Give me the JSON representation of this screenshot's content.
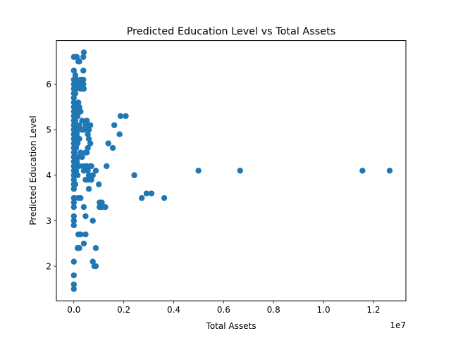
{
  "chart_data": {
    "type": "scatter",
    "title": "Predicted Education Level vs Total Assets",
    "xlabel": "Total Assets",
    "ylabel": "Predicted Education Level",
    "x_offset_label": "1e7",
    "xlim": [
      -700000,
      13300000
    ],
    "ylim": [
      1.24,
      6.96
    ],
    "xticks": [
      {
        "value": 0,
        "label": "0.0"
      },
      {
        "value": 2000000,
        "label": "0.2"
      },
      {
        "value": 4000000,
        "label": "0.4"
      },
      {
        "value": 6000000,
        "label": "0.6"
      },
      {
        "value": 8000000,
        "label": "0.8"
      },
      {
        "value": 10000000,
        "label": "1.0"
      },
      {
        "value": 12000000,
        "label": "1.2"
      }
    ],
    "yticks": [
      {
        "value": 2,
        "label": "2"
      },
      {
        "value": 3,
        "label": "3"
      },
      {
        "value": 4,
        "label": "4"
      },
      {
        "value": 5,
        "label": "5"
      },
      {
        "value": 6,
        "label": "6"
      }
    ],
    "grid": false,
    "marker_color": "#1f77b4",
    "points": [
      [
        0,
        1.5
      ],
      [
        0,
        1.6
      ],
      [
        0,
        1.8
      ],
      [
        0,
        2.1
      ],
      [
        0,
        2.9
      ],
      [
        0,
        3.0
      ],
      [
        0,
        3.1
      ],
      [
        0,
        3.3
      ],
      [
        0,
        3.4
      ],
      [
        0,
        3.5
      ],
      [
        0,
        3.7
      ],
      [
        0,
        3.8
      ],
      [
        0,
        3.9
      ],
      [
        0,
        4.0
      ],
      [
        0,
        4.1
      ],
      [
        0,
        4.2
      ],
      [
        0,
        4.3
      ],
      [
        0,
        4.4
      ],
      [
        0,
        4.5
      ],
      [
        0,
        4.6
      ],
      [
        0,
        4.7
      ],
      [
        0,
        4.8
      ],
      [
        0,
        4.9
      ],
      [
        0,
        5.0
      ],
      [
        0,
        5.1
      ],
      [
        0,
        5.2
      ],
      [
        0,
        5.3
      ],
      [
        0,
        5.4
      ],
      [
        0,
        5.5
      ],
      [
        0,
        5.6
      ],
      [
        0,
        5.7
      ],
      [
        0,
        5.8
      ],
      [
        0,
        5.9
      ],
      [
        0,
        6.0
      ],
      [
        0,
        6.1
      ],
      [
        0,
        6.3
      ],
      [
        0,
        6.6
      ],
      [
        30000,
        3.5
      ],
      [
        30000,
        4.0
      ],
      [
        30000,
        4.5
      ],
      [
        30000,
        5.0
      ],
      [
        30000,
        5.5
      ],
      [
        30000,
        6.0
      ],
      [
        60000,
        3.8
      ],
      [
        60000,
        4.2
      ],
      [
        60000,
        4.8
      ],
      [
        60000,
        5.2
      ],
      [
        60000,
        5.8
      ],
      [
        60000,
        6.2
      ],
      [
        90000,
        4.1
      ],
      [
        90000,
        4.6
      ],
      [
        90000,
        5.1
      ],
      [
        90000,
        5.9
      ],
      [
        120000,
        4.3
      ],
      [
        120000,
        4.9
      ],
      [
        120000,
        5.4
      ],
      [
        120000,
        6.1
      ],
      [
        120000,
        6.6
      ],
      [
        150000,
        2.4
      ],
      [
        150000,
        4.0
      ],
      [
        150000,
        4.7
      ],
      [
        150000,
        5.3
      ],
      [
        180000,
        2.7
      ],
      [
        180000,
        3.5
      ],
      [
        180000,
        4.4
      ],
      [
        180000,
        5.0
      ],
      [
        180000,
        5.6
      ],
      [
        180000,
        6.0
      ],
      [
        180000,
        6.5
      ],
      [
        220000,
        2.4
      ],
      [
        220000,
        4.2
      ],
      [
        220000,
        4.8
      ],
      [
        220000,
        5.1
      ],
      [
        220000,
        5.5
      ],
      [
        220000,
        6.5
      ],
      [
        270000,
        2.7
      ],
      [
        270000,
        3.5
      ],
      [
        270000,
        4.5
      ],
      [
        270000,
        5.4
      ],
      [
        270000,
        5.9
      ],
      [
        270000,
        6.1
      ],
      [
        330000,
        4.4
      ],
      [
        330000,
        5.0
      ],
      [
        330000,
        5.2
      ],
      [
        380000,
        4.2
      ],
      [
        380000,
        5.9
      ],
      [
        380000,
        6.0
      ],
      [
        380000,
        6.1
      ],
      [
        380000,
        6.3
      ],
      [
        380000,
        6.6
      ],
      [
        400000,
        2.5
      ],
      [
        400000,
        3.3
      ],
      [
        400000,
        4.1
      ],
      [
        400000,
        5.0
      ],
      [
        400000,
        5.9
      ],
      [
        400000,
        6.7
      ],
      [
        470000,
        2.7
      ],
      [
        470000,
        3.1
      ],
      [
        470000,
        3.9
      ],
      [
        470000,
        4.5
      ],
      [
        470000,
        5.1
      ],
      [
        520000,
        4.2
      ],
      [
        520000,
        4.5
      ],
      [
        520000,
        5.2
      ],
      [
        560000,
        3.9
      ],
      [
        560000,
        4.1
      ],
      [
        560000,
        4.6
      ],
      [
        560000,
        4.9
      ],
      [
        560000,
        5.1
      ],
      [
        600000,
        3.7
      ],
      [
        600000,
        4.0
      ],
      [
        600000,
        4.8
      ],
      [
        600000,
        5.0
      ],
      [
        660000,
        4.2
      ],
      [
        660000,
        4.7
      ],
      [
        660000,
        5.1
      ],
      [
        700000,
        3.9
      ],
      [
        700000,
        4.2
      ],
      [
        760000,
        2.1
      ],
      [
        760000,
        3.0
      ],
      [
        760000,
        4.0
      ],
      [
        820000,
        2.0
      ],
      [
        880000,
        2.0
      ],
      [
        880000,
        2.4
      ],
      [
        880000,
        4.1
      ],
      [
        1000000,
        3.8
      ],
      [
        1030000,
        3.3
      ],
      [
        1030000,
        3.4
      ],
      [
        1120000,
        3.3
      ],
      [
        1120000,
        3.4
      ],
      [
        1260000,
        3.3
      ],
      [
        1310000,
        4.2
      ],
      [
        1380000,
        4.7
      ],
      [
        1560000,
        4.6
      ],
      [
        1620000,
        5.1
      ],
      [
        1830000,
        4.9
      ],
      [
        1870000,
        5.3
      ],
      [
        2080000,
        5.3
      ],
      [
        2420000,
        4.0
      ],
      [
        2720000,
        3.5
      ],
      [
        2910000,
        3.6
      ],
      [
        3110000,
        3.6
      ],
      [
        3620000,
        3.5
      ],
      [
        4990000,
        4.1
      ],
      [
        6660000,
        4.1
      ],
      [
        11560000,
        4.1
      ],
      [
        12650000,
        4.1
      ]
    ]
  }
}
